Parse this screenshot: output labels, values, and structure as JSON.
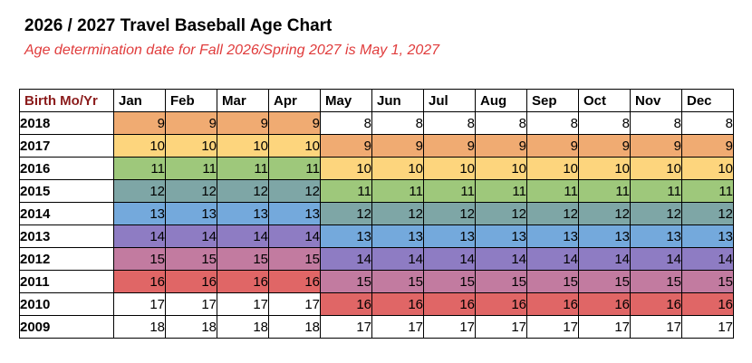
{
  "title": "2026 / 2027 Travel Baseball Age Chart",
  "subtitle": "Age determination date for Fall 2026/Spring 2027 is May 1, 2027",
  "table": {
    "corner_label": "Birth Mo/Yr",
    "months": [
      "Jan",
      "Feb",
      "Mar",
      "Apr",
      "May",
      "Jun",
      "Jul",
      "Aug",
      "Sep",
      "Oct",
      "Nov",
      "Dec"
    ],
    "age_colors": {
      "9": "#f0ab72",
      "10": "#fdd57d",
      "11": "#9ec87b",
      "12": "#7ea6a6",
      "13": "#74a9dc",
      "14": "#8e7cc3",
      "15": "#c27ba0",
      "16": "#e06666",
      "17": "#ffffff",
      "18": "#ffffff",
      "8": "#ffffff"
    },
    "rows": [
      {
        "year": "2018",
        "ages": [
          "9",
          "9",
          "9",
          "9",
          "8",
          "8",
          "8",
          "8",
          "8",
          "8",
          "8",
          "8"
        ]
      },
      {
        "year": "2017",
        "ages": [
          "10",
          "10",
          "10",
          "10",
          "9",
          "9",
          "9",
          "9",
          "9",
          "9",
          "9",
          "9"
        ]
      },
      {
        "year": "2016",
        "ages": [
          "11",
          "11",
          "11",
          "11",
          "10",
          "10",
          "10",
          "10",
          "10",
          "10",
          "10",
          "10"
        ]
      },
      {
        "year": "2015",
        "ages": [
          "12",
          "12",
          "12",
          "12",
          "11",
          "11",
          "11",
          "11",
          "11",
          "11",
          "11",
          "11"
        ]
      },
      {
        "year": "2014",
        "ages": [
          "13",
          "13",
          "13",
          "13",
          "12",
          "12",
          "12",
          "12",
          "12",
          "12",
          "12",
          "12"
        ]
      },
      {
        "year": "2013",
        "ages": [
          "14",
          "14",
          "14",
          "14",
          "13",
          "13",
          "13",
          "13",
          "13",
          "13",
          "13",
          "13"
        ]
      },
      {
        "year": "2012",
        "ages": [
          "15",
          "15",
          "15",
          "15",
          "14",
          "14",
          "14",
          "14",
          "14",
          "14",
          "14",
          "14"
        ]
      },
      {
        "year": "2011",
        "ages": [
          "16",
          "16",
          "16",
          "16",
          "15",
          "15",
          "15",
          "15",
          "15",
          "15",
          "15",
          "15"
        ]
      },
      {
        "year": "2010",
        "ages": [
          "17",
          "17",
          "17",
          "17",
          "16",
          "16",
          "16",
          "16",
          "16",
          "16",
          "16",
          "16"
        ]
      },
      {
        "year": "2009",
        "ages": [
          "18",
          "18",
          "18",
          "18",
          "17",
          "17",
          "17",
          "17",
          "17",
          "17",
          "17",
          "17"
        ]
      }
    ]
  }
}
